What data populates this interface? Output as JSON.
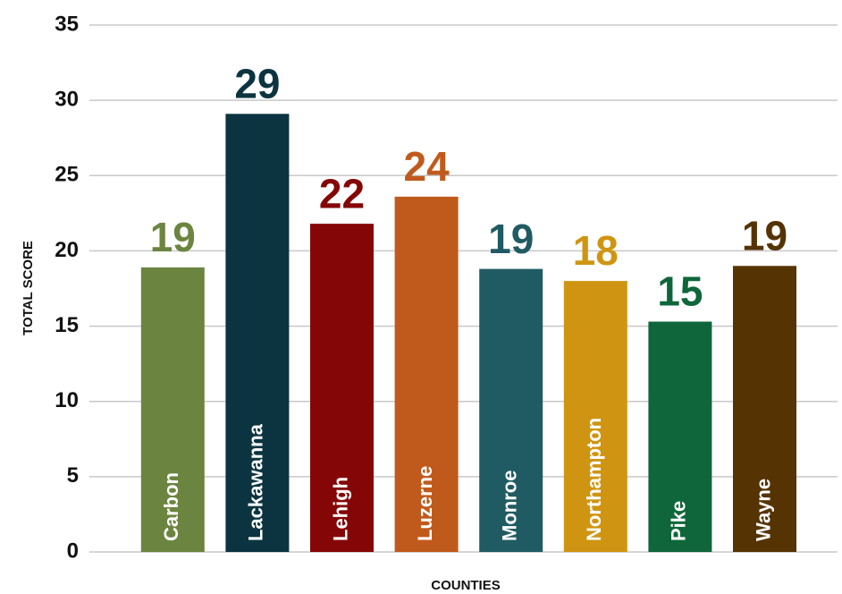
{
  "chart_data": {
    "type": "bar",
    "x_label": "COUNTIES",
    "y_label": "TOTAL SCORE",
    "categories": [
      "Carbon",
      "Lackawanna",
      "Lehigh",
      "Luzerne",
      "Monroe",
      "Northampton",
      "Pike",
      "Wayne"
    ],
    "values": [
      18.9,
      29.1,
      21.8,
      23.6,
      18.8,
      18.0,
      15.3,
      19.0
    ],
    "value_labels": [
      "19",
      "29",
      "22",
      "24",
      "19",
      "18",
      "15",
      "19"
    ],
    "colors": [
      "#6b8540",
      "#0b3440",
      "#850606",
      "#c05a1c",
      "#205b63",
      "#cf9512",
      "#0f663a",
      "#553303"
    ],
    "ylim": [
      0,
      35
    ],
    "yticks": [
      0,
      5,
      10,
      15,
      20,
      25,
      30,
      35
    ],
    "grid": true
  }
}
